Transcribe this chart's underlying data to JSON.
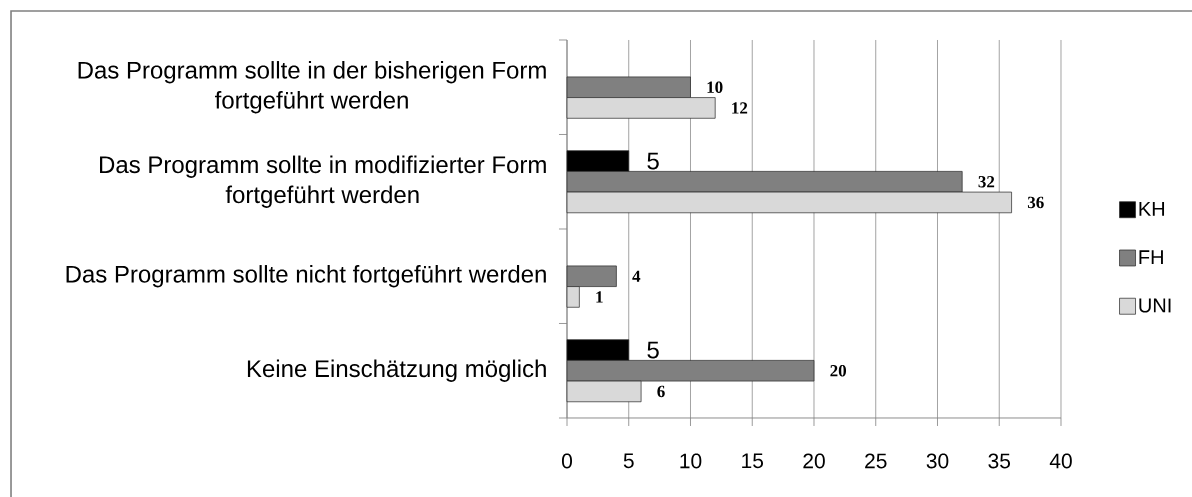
{
  "chart_data": {
    "type": "bar",
    "orientation": "horizontal",
    "categories": [
      "Das Programm sollte in der bisherigen Form fortgeführt werden",
      "Das Programm sollte in modifizierter Form fortgeführt werden",
      "Das Programm sollte nicht fortgeführt werden",
      "Keine Einschätzung möglich"
    ],
    "series": [
      {
        "name": "KH",
        "color": "#000000",
        "values": [
          null,
          5,
          null,
          5
        ]
      },
      {
        "name": "FH",
        "color": "#808080",
        "values": [
          10,
          32,
          4,
          20
        ]
      },
      {
        "name": "UNI",
        "color": "#d9d9d9",
        "values": [
          12,
          36,
          1,
          6
        ]
      }
    ],
    "xlim": [
      0,
      40
    ],
    "xticks": [
      0,
      5,
      10,
      15,
      20,
      25,
      30,
      35,
      40
    ],
    "grid": "x",
    "legend": "right",
    "data_labels": true
  }
}
